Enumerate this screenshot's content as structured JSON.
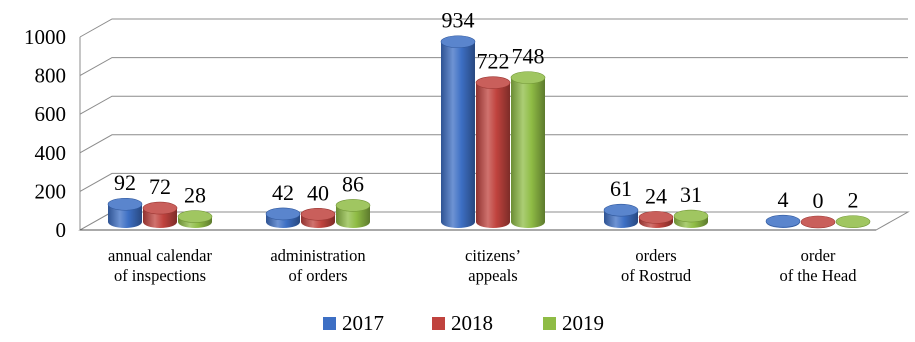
{
  "chart_data": {
    "type": "bar",
    "title": "",
    "xlabel": "",
    "ylabel": "",
    "ylim": [
      0,
      1000
    ],
    "yticks": [
      0,
      200,
      400,
      600,
      800,
      1000
    ],
    "grid": true,
    "legend_position": "bottom",
    "categories": [
      [
        "annual calendar",
        "of inspections"
      ],
      [
        "administration",
        "of orders"
      ],
      [
        "citizens’",
        "appeals"
      ],
      [
        "orders",
        "of Rostrud"
      ],
      [
        "order",
        "of the Head"
      ]
    ],
    "series": [
      {
        "name": "2017",
        "color": "#3d6fc4",
        "values": [
          92,
          42,
          934,
          61,
          4
        ]
      },
      {
        "name": "2018",
        "color": "#c0433e",
        "values": [
          72,
          40,
          722,
          24,
          0
        ]
      },
      {
        "name": "2019",
        "color": "#8fbc45",
        "values": [
          28,
          86,
          748,
          31,
          2
        ]
      }
    ],
    "style": "3d-cylinder"
  }
}
